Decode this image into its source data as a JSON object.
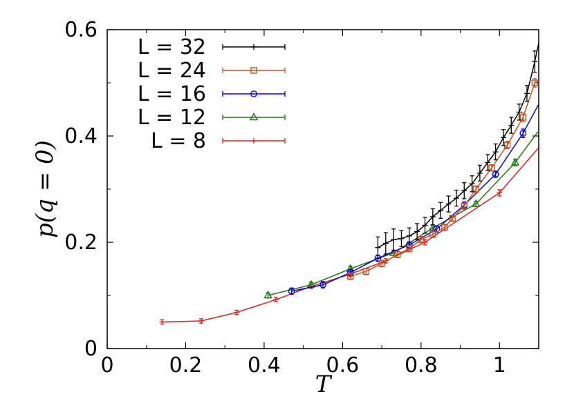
{
  "chart_data": {
    "type": "line",
    "xlabel": "T",
    "ylabel": "p(q = 0)",
    "xlim": [
      0,
      1.1
    ],
    "ylim": [
      0,
      0.6
    ],
    "xticks": [
      "0",
      "0.2",
      "0.4",
      "0.6",
      "0.8",
      "1"
    ],
    "yticks": [
      "0",
      "0.2",
      "0.4",
      "0.6"
    ],
    "grid": false,
    "legend_position": "top-left",
    "series": [
      {
        "name": "L = 32",
        "color": "#000000",
        "marker": "plus",
        "x": [
          0.69,
          0.71,
          0.73,
          0.75,
          0.77,
          0.79,
          0.81,
          0.83,
          0.85,
          0.87,
          0.89,
          0.91,
          0.93,
          0.95,
          0.97,
          0.99,
          1.01,
          1.03,
          1.05,
          1.07,
          1.09,
          1.1
        ],
        "y": [
          0.19,
          0.198,
          0.205,
          0.207,
          0.212,
          0.22,
          0.232,
          0.248,
          0.26,
          0.272,
          0.283,
          0.297,
          0.31,
          0.33,
          0.35,
          0.37,
          0.397,
          0.42,
          0.445,
          0.48,
          0.54,
          0.575
        ],
        "err": [
          0.02,
          0.02,
          0.02,
          0.015,
          0.015,
          0.015,
          0.015,
          0.015,
          0.015,
          0.015,
          0.015,
          0.015,
          0.015,
          0.015,
          0.015,
          0.015,
          0.015,
          0.015,
          0.015,
          0.015,
          0.02,
          0
        ]
      },
      {
        "name": "L = 24",
        "color": "#c8501e",
        "marker": "square",
        "x": [
          0.62,
          0.66,
          0.7,
          0.74,
          0.77,
          0.8,
          0.83,
          0.86,
          0.88,
          0.91,
          0.94,
          0.98,
          1.02,
          1.06,
          1.09,
          1.1
        ],
        "y": [
          0.136,
          0.145,
          0.16,
          0.177,
          0.188,
          0.205,
          0.215,
          0.228,
          0.245,
          0.268,
          0.3,
          0.34,
          0.383,
          0.435,
          0.5,
          0.505
        ],
        "err": [
          0.006,
          0.006,
          0.006,
          0.006,
          0.006,
          0.006,
          0.006,
          0.006,
          0.006,
          0.006,
          0.006,
          0.006,
          0.007,
          0.008,
          0.008,
          0
        ]
      },
      {
        "name": "L = 16",
        "color": "#0000e0",
        "marker": "circle",
        "x": [
          0.47,
          0.55,
          0.62,
          0.69,
          0.77,
          0.84,
          0.91,
          0.99,
          1.06,
          1.1
        ],
        "y": [
          0.108,
          0.12,
          0.143,
          0.17,
          0.195,
          0.225,
          0.27,
          0.328,
          0.405,
          0.46
        ],
        "err": [
          0.006,
          0.006,
          0.006,
          0.006,
          0.006,
          0.006,
          0.006,
          0.006,
          0.008,
          0
        ]
      },
      {
        "name": "L = 12",
        "color": "#1e7814",
        "marker": "triangle",
        "x": [
          0.41,
          0.52,
          0.62,
          0.73,
          0.83,
          0.94,
          1.04,
          1.1
        ],
        "y": [
          0.1,
          0.12,
          0.15,
          0.18,
          0.227,
          0.272,
          0.35,
          0.41
        ],
        "err": [
          0.005,
          0.005,
          0.005,
          0.005,
          0.005,
          0.005,
          0.006,
          0
        ]
      },
      {
        "name": "L = 8",
        "color": "#e01e1e",
        "marker": "plus",
        "x": [
          0.14,
          0.24,
          0.33,
          0.43,
          0.52,
          0.62,
          0.71,
          0.81,
          1.0,
          1.1
        ],
        "y": [
          0.05,
          0.052,
          0.068,
          0.092,
          0.117,
          0.14,
          0.165,
          0.2,
          0.293,
          0.378
        ],
        "err": [
          0.004,
          0.004,
          0.004,
          0.004,
          0.004,
          0.004,
          0.004,
          0.005,
          0.006,
          0
        ]
      }
    ]
  }
}
